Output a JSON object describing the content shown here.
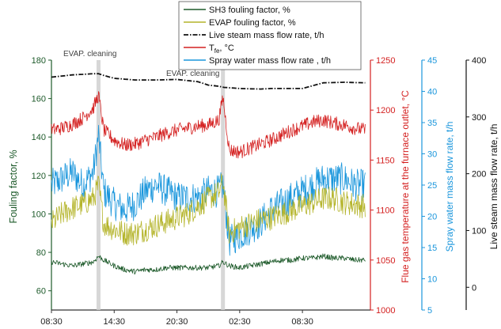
{
  "chart_data": {
    "type": "line",
    "x_tick_labels": [
      "08:30",
      "14:30",
      "20:30",
      "02:30",
      "08:30"
    ],
    "x_ticks_hours": [
      0,
      6,
      12,
      18,
      24
    ],
    "x_range_hours": [
      0,
      30.5
    ],
    "colors": {
      "sh3": "#1d5a2a",
      "evap": "#b4b42a",
      "steam": "#111111",
      "tfe": "#d42020",
      "spray": "#1a96dc",
      "left_axis": "#1d5a2a",
      "right1_axis": "#d42020",
      "right2_axis": "#1a96dc",
      "right3_axis": "#111111"
    },
    "axes": {
      "left": {
        "label": "Fouling factor, %",
        "ticks": [
          "60",
          "80",
          "100",
          "120",
          "140",
          "160",
          "180"
        ],
        "range": [
          50,
          180
        ]
      },
      "right1": {
        "label": "Flue gas temperature at the furnace outlet, °C",
        "ticks": [
          "1000",
          "1050",
          "1100",
          "1150",
          "1200",
          "1250"
        ],
        "range": [
          1000,
          1250
        ]
      },
      "right2": {
        "label": "Spray water mass flow rate, t/h",
        "ticks": [
          "5",
          "10",
          "15",
          "20",
          "25",
          "30",
          "35",
          "40",
          "45"
        ],
        "range": [
          5,
          45
        ]
      },
      "right3": {
        "label": "Live steam mass flow rate, t/h",
        "ticks": [
          "0",
          "100",
          "200",
          "300",
          "400"
        ],
        "range": [
          -40,
          400
        ]
      }
    },
    "annotations": [
      {
        "text": "EVAP. cleaning",
        "x_hours": 4.5
      },
      {
        "text": "EVAP. cleaning",
        "x_hours": 16.4
      }
    ],
    "legend": [
      "SH3 fouling factor, %",
      "EVAP fouling factor, %",
      "Live steam mass flow rate, t/h",
      "T",
      "fe",
      ", °C",
      "Spray water mass flow rate , t/h"
    ],
    "series": [
      {
        "name": "SH3 fouling factor, %",
        "axis": "left",
        "x": [
          0,
          1,
          2,
          3,
          4,
          4.5,
          5,
          6,
          7,
          8,
          9,
          10,
          11,
          12,
          13,
          14,
          15,
          16,
          16.4,
          17,
          18,
          19,
          20,
          21,
          22,
          23,
          24,
          25,
          26,
          27,
          28,
          29,
          30
        ],
        "y": [
          75,
          74,
          73,
          74,
          75,
          78,
          76,
          73,
          71,
          70,
          71,
          71,
          72,
          72,
          72,
          72,
          72,
          73,
          75,
          73,
          72,
          73,
          74,
          75,
          76,
          76,
          77,
          77,
          78,
          77,
          77,
          76,
          76
        ]
      },
      {
        "name": "EVAP fouling factor, %",
        "axis": "left",
        "x": [
          0,
          1,
          2,
          3,
          4,
          4.5,
          5,
          6,
          7,
          8,
          9,
          10,
          11,
          12,
          13,
          14,
          15,
          16,
          16.4,
          17,
          18,
          19,
          20,
          21,
          22,
          23,
          24,
          25,
          26,
          27,
          28,
          29,
          30
        ],
        "y": [
          95,
          100,
          103,
          105,
          108,
          115,
          95,
          92,
          90,
          90,
          92,
          94,
          96,
          98,
          100,
          104,
          108,
          111,
          117,
          90,
          93,
          95,
          97,
          98,
          100,
          102,
          104,
          106,
          108,
          108,
          106,
          105,
          104
        ]
      },
      {
        "name": "Live steam mass flow rate, t/h",
        "axis": "right3",
        "x": [
          0,
          2,
          4,
          4.5,
          5,
          6,
          8,
          10,
          12,
          14,
          15,
          16,
          16.5,
          18,
          20,
          21,
          22,
          24,
          26,
          28,
          30
        ],
        "y": [
          370,
          374,
          376,
          376,
          373,
          368,
          365,
          365,
          366,
          362,
          356,
          354,
          352,
          350,
          349,
          350,
          350,
          350,
          360,
          361,
          360
        ]
      },
      {
        "name": "T fe, °C",
        "axis": "right1",
        "x": [
          0,
          1,
          2,
          3,
          4,
          4.5,
          5,
          6,
          7,
          8,
          9,
          10,
          11,
          12,
          13,
          14,
          15,
          16,
          16.4,
          17,
          18,
          19,
          20,
          21,
          22,
          23,
          24,
          25,
          26,
          27,
          28,
          29,
          30
        ],
        "y": [
          1180,
          1182,
          1186,
          1192,
          1202,
          1215,
          1180,
          1170,
          1165,
          1166,
          1170,
          1173,
          1177,
          1180,
          1182,
          1184,
          1185,
          1190,
          1213,
          1160,
          1158,
          1162,
          1166,
          1170,
          1175,
          1180,
          1184,
          1188,
          1190,
          1187,
          1185,
          1182,
          1180
        ]
      },
      {
        "name": "Spray water mass flow rate , t/h",
        "axis": "right2",
        "x": [
          0,
          1,
          2,
          3,
          4,
          4.5,
          5,
          6,
          7,
          8,
          9,
          10,
          11,
          12,
          13,
          14,
          15,
          16,
          16.4,
          17,
          18,
          19,
          20,
          21,
          22,
          23,
          24,
          25,
          26,
          27,
          28,
          29,
          30
        ],
        "y": [
          25,
          26,
          27,
          25,
          27,
          33,
          24,
          22,
          21,
          22,
          24,
          25,
          24,
          23,
          23,
          23,
          24,
          24,
          25,
          16,
          17,
          18,
          19,
          21,
          22,
          23,
          24,
          25,
          26,
          26,
          26,
          25,
          25
        ]
      }
    ]
  }
}
